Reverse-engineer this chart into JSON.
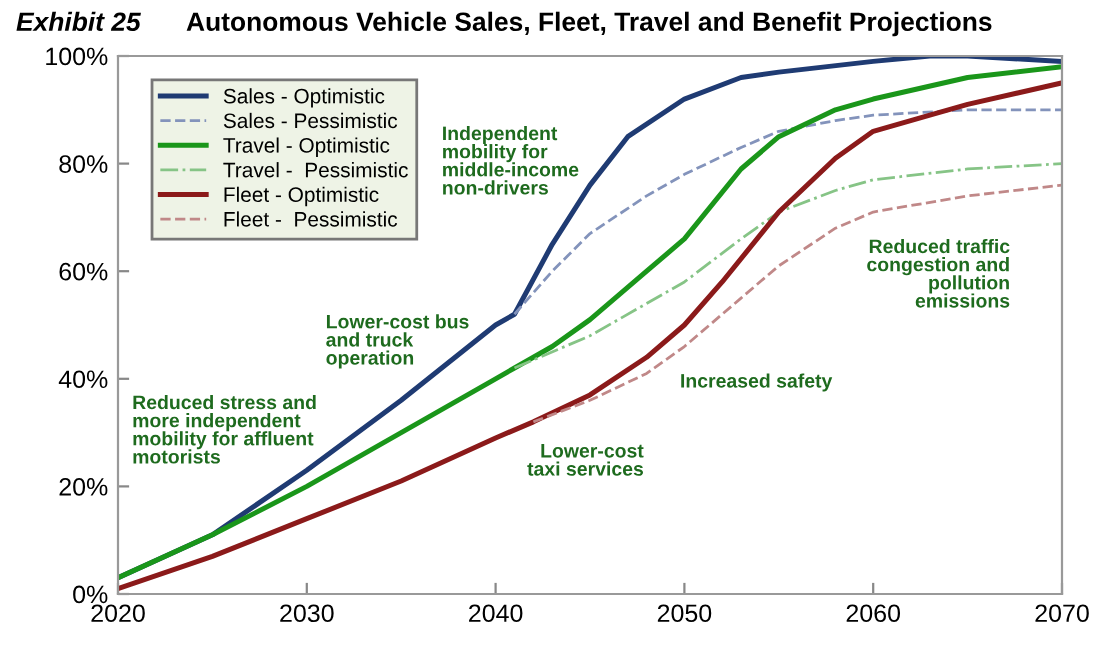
{
  "chart_data": {
    "type": "line",
    "title": "Autonomous Vehicle Sales, Fleet, Travel and Benefit Projections",
    "xlim": [
      2020,
      2070
    ],
    "xticks": [
      2020,
      2030,
      2040,
      2050,
      2060,
      2070
    ],
    "ylim": [
      0,
      100
    ],
    "yticks": [
      {
        "value": 0,
        "label": "0%"
      },
      {
        "value": 20,
        "label": "20%"
      },
      {
        "value": 40,
        "label": "40%"
      },
      {
        "value": 60,
        "label": "60%"
      },
      {
        "value": 80,
        "label": "80%"
      },
      {
        "value": 100,
        "label": "100%"
      }
    ],
    "grid": false,
    "legend": "top left",
    "series": [
      {
        "name": "Sales - Optimistic",
        "color": "#1f3b73",
        "line_style": "solid",
        "x": [
          2020,
          2025,
          2030,
          2035,
          2040,
          2041,
          2043,
          2045,
          2047,
          2050,
          2053,
          2055,
          2060,
          2063,
          2065,
          2070
        ],
        "values": [
          3,
          11,
          23,
          36,
          50,
          52,
          65,
          76,
          85,
          92,
          96,
          97,
          99,
          100,
          100,
          99
        ]
      },
      {
        "name": "Sales - Pessimistic",
        "color": "#8393bb",
        "line_style": "dashed",
        "x": [
          2041,
          2043,
          2045,
          2048,
          2050,
          2053,
          2055,
          2058,
          2060,
          2065,
          2070
        ],
        "values": [
          52,
          60,
          67,
          74,
          78,
          83,
          86,
          88,
          89,
          90,
          90
        ]
      },
      {
        "name": "Travel - Optimistic",
        "color": "#1a961a",
        "line_style": "solid",
        "x": [
          2020,
          2025,
          2030,
          2035,
          2040,
          2041,
          2043,
          2045,
          2048,
          2050,
          2053,
          2055,
          2058,
          2060,
          2065,
          2070
        ],
        "values": [
          3,
          11,
          20,
          30,
          40,
          42,
          46,
          51,
          60,
          66,
          79,
          85,
          90,
          92,
          96,
          98
        ]
      },
      {
        "name": "Travel -  Pessimistic",
        "color": "#86c486",
        "line_style": "dashdot",
        "x": [
          2041,
          2045,
          2050,
          2053,
          2055,
          2058,
          2060,
          2065,
          2070
        ],
        "values": [
          42,
          48,
          58,
          66,
          71,
          75,
          77,
          79,
          80
        ]
      },
      {
        "name": "Fleet - Optimistic",
        "color": "#8b1a1a",
        "line_style": "solid",
        "x": [
          2020,
          2025,
          2030,
          2035,
          2040,
          2042,
          2045,
          2048,
          2050,
          2052,
          2055,
          2058,
          2060,
          2063,
          2065,
          2070
        ],
        "values": [
          1,
          7,
          14,
          21,
          29,
          32,
          37,
          44,
          50,
          58,
          71,
          81,
          86,
          89,
          91,
          95
        ]
      },
      {
        "name": "Fleet -  Pessimistic",
        "color": "#c08888",
        "line_style": "dashed",
        "x": [
          2042,
          2045,
          2048,
          2050,
          2053,
          2055,
          2058,
          2060,
          2065,
          2070
        ],
        "values": [
          32,
          36,
          41,
          46,
          55,
          61,
          68,
          71,
          74,
          76
        ]
      }
    ],
    "annotations": [
      "Exhibit 25",
      "Reduced stress and\nmore independent\nmobility for affluent\nmotorists",
      "Lower-cost bus\nand truck\noperation",
      "Independent\nmobility for\nmiddle-income\nnon-drivers",
      "Increased safety",
      "Lower-cost\ntaxi services",
      "Reduced traffic\ncongestion and\npollution\nemissions"
    ]
  }
}
